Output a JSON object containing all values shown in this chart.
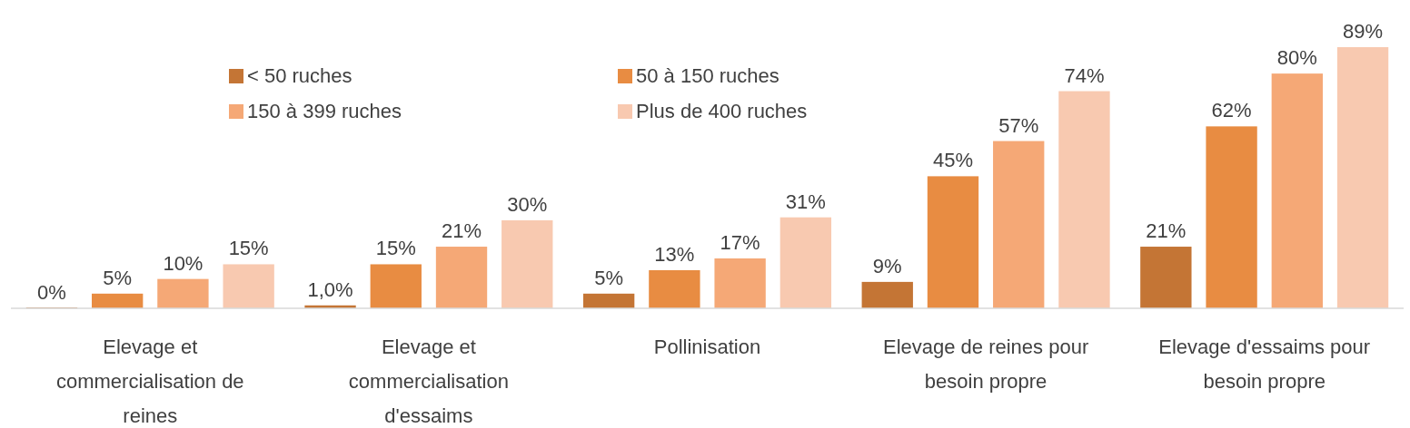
{
  "chart_data": {
    "type": "bar",
    "categories": [
      "Elevage et commercialisation de reines",
      "Elevage et commercialisation d'essaims",
      "Pollinisation",
      "Elevage de reines pour besoin propre",
      "Elevage d'essaims pour besoin propre"
    ],
    "series": [
      {
        "name": "< 50 ruches",
        "color": "#c47535",
        "values": [
          0,
          1.0,
          5,
          9,
          21
        ],
        "value_labels": [
          "0%",
          "1,0%",
          "5%",
          "9%",
          "21%"
        ]
      },
      {
        "name": "50 à 150 ruches",
        "color": "#e88c42",
        "values": [
          5,
          15,
          13,
          45,
          62
        ],
        "value_labels": [
          "5%",
          "15%",
          "13%",
          "45%",
          "62%"
        ]
      },
      {
        "name": "150 à 399 ruches",
        "color": "#f5a876",
        "values": [
          10,
          21,
          17,
          57,
          80
        ],
        "value_labels": [
          "10%",
          "21%",
          "17%",
          "57%",
          "80%"
        ]
      },
      {
        "name": "Plus de 400 ruches",
        "color": "#f8c9b0",
        "values": [
          15,
          30,
          31,
          74,
          89
        ],
        "value_labels": [
          "15%",
          "30%",
          "31%",
          "74%",
          "89%"
        ]
      }
    ],
    "legend": "top left"
  }
}
